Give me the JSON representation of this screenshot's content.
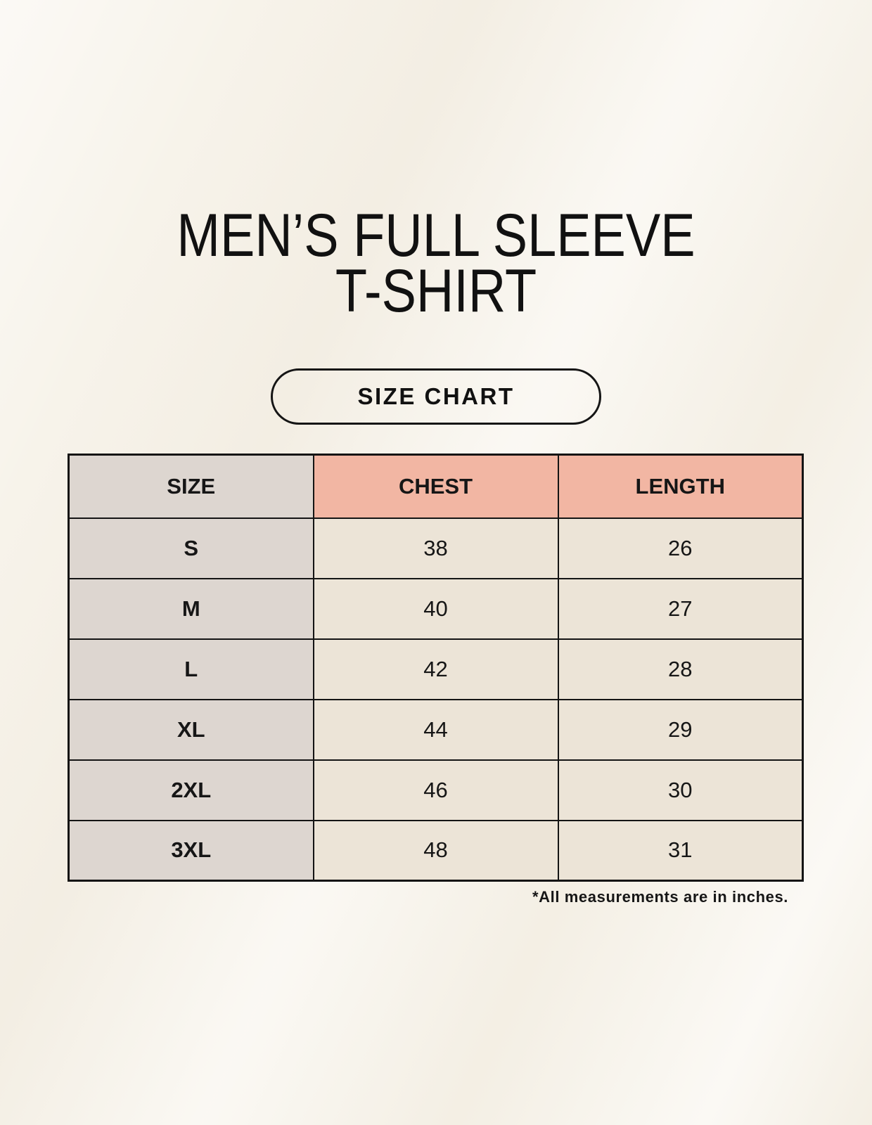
{
  "page": {
    "background_color": "#f7f3ea"
  },
  "title": {
    "line1": "MEN’S FULL SLEEVE",
    "line2": "T-SHIRT"
  },
  "size_chart_button": {
    "label": "SIZE CHART"
  },
  "table": {
    "columns": [
      "SIZE",
      "CHEST",
      "LENGTH"
    ],
    "rows": [
      {
        "size": "S",
        "chest": "38",
        "length": "26"
      },
      {
        "size": "M",
        "chest": "40",
        "length": "27"
      },
      {
        "size": "L",
        "chest": "42",
        "length": "28"
      },
      {
        "size": "XL",
        "chest": "44",
        "length": "29"
      },
      {
        "size": "2XL",
        "chest": "46",
        "length": "30"
      },
      {
        "size": "3XL",
        "chest": "48",
        "length": "31"
      }
    ],
    "colors": {
      "size_column_bg": "#ddd6d0",
      "header_accent_bg": "#f2b6a3",
      "data_cell_bg": "#ece4d7",
      "border": "#141414"
    }
  },
  "footnote": "*All measurements are in inches.",
  "chart_data": {
    "type": "table",
    "title": "MEN’S FULL SLEEVE T-SHIRT — SIZE CHART",
    "columns": [
      "SIZE",
      "CHEST",
      "LENGTH"
    ],
    "rows": [
      [
        "S",
        38,
        26
      ],
      [
        "M",
        40,
        27
      ],
      [
        "L",
        42,
        28
      ],
      [
        "XL",
        44,
        29
      ],
      [
        "2XL",
        46,
        30
      ],
      [
        "3XL",
        48,
        31
      ]
    ],
    "note": "*All measurements are in inches.",
    "units": "inches"
  }
}
